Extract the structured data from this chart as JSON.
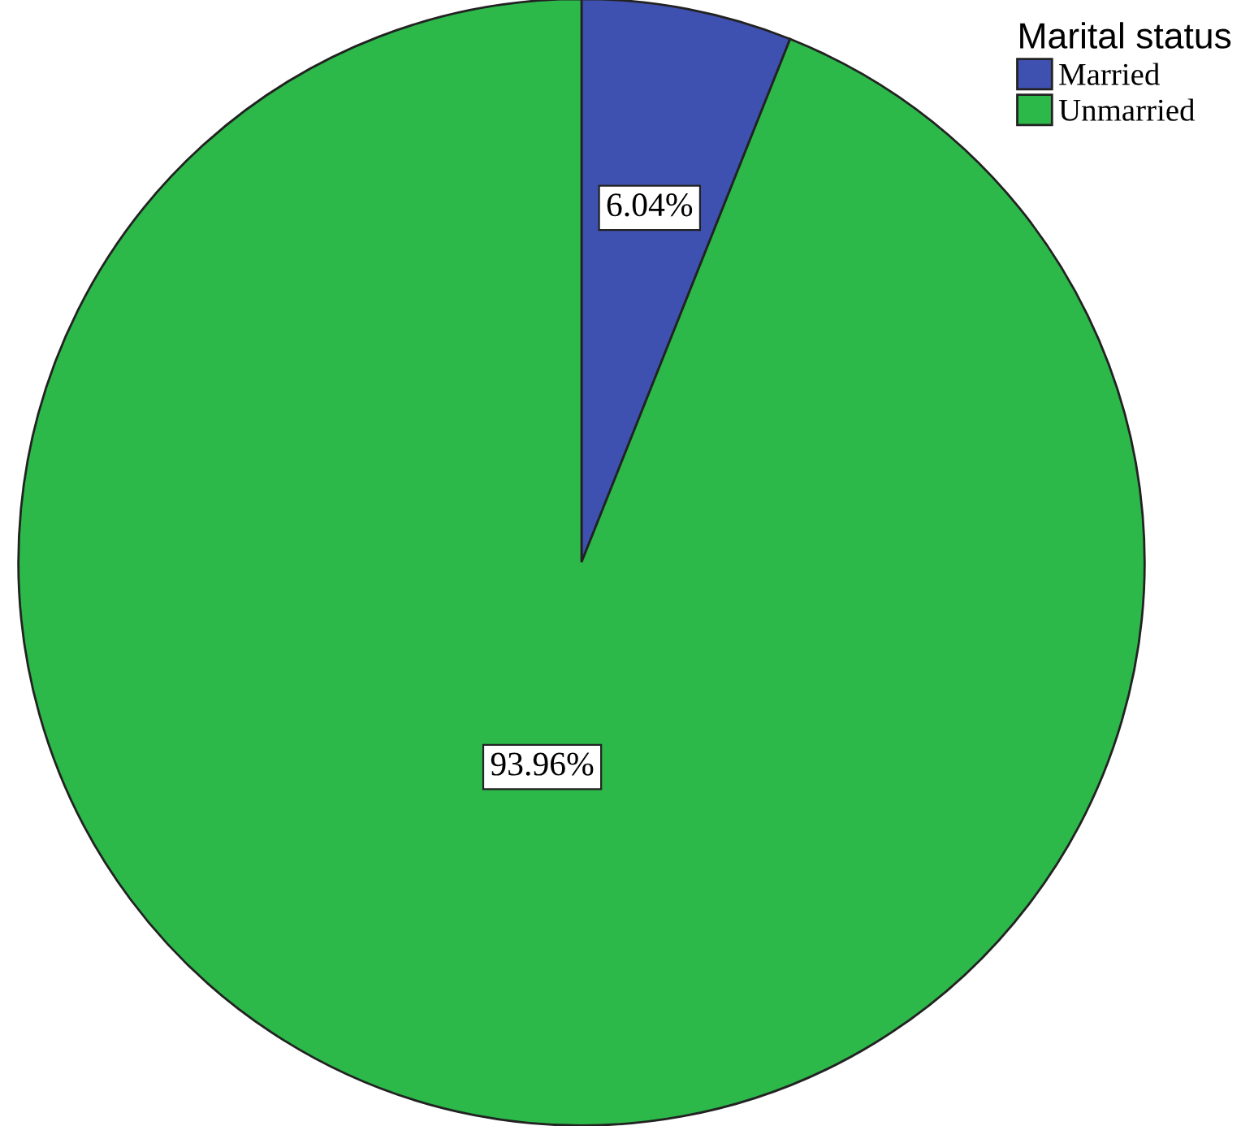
{
  "chart_data": {
    "type": "pie",
    "legend_title": "Marital status",
    "categories": [
      "Married",
      "Unmarried"
    ],
    "values": [
      6.04,
      93.96
    ],
    "colors": [
      "#3f51b0",
      "#2db84a"
    ],
    "value_labels": [
      "6.04%",
      "93.96%"
    ],
    "legend": "top right"
  }
}
